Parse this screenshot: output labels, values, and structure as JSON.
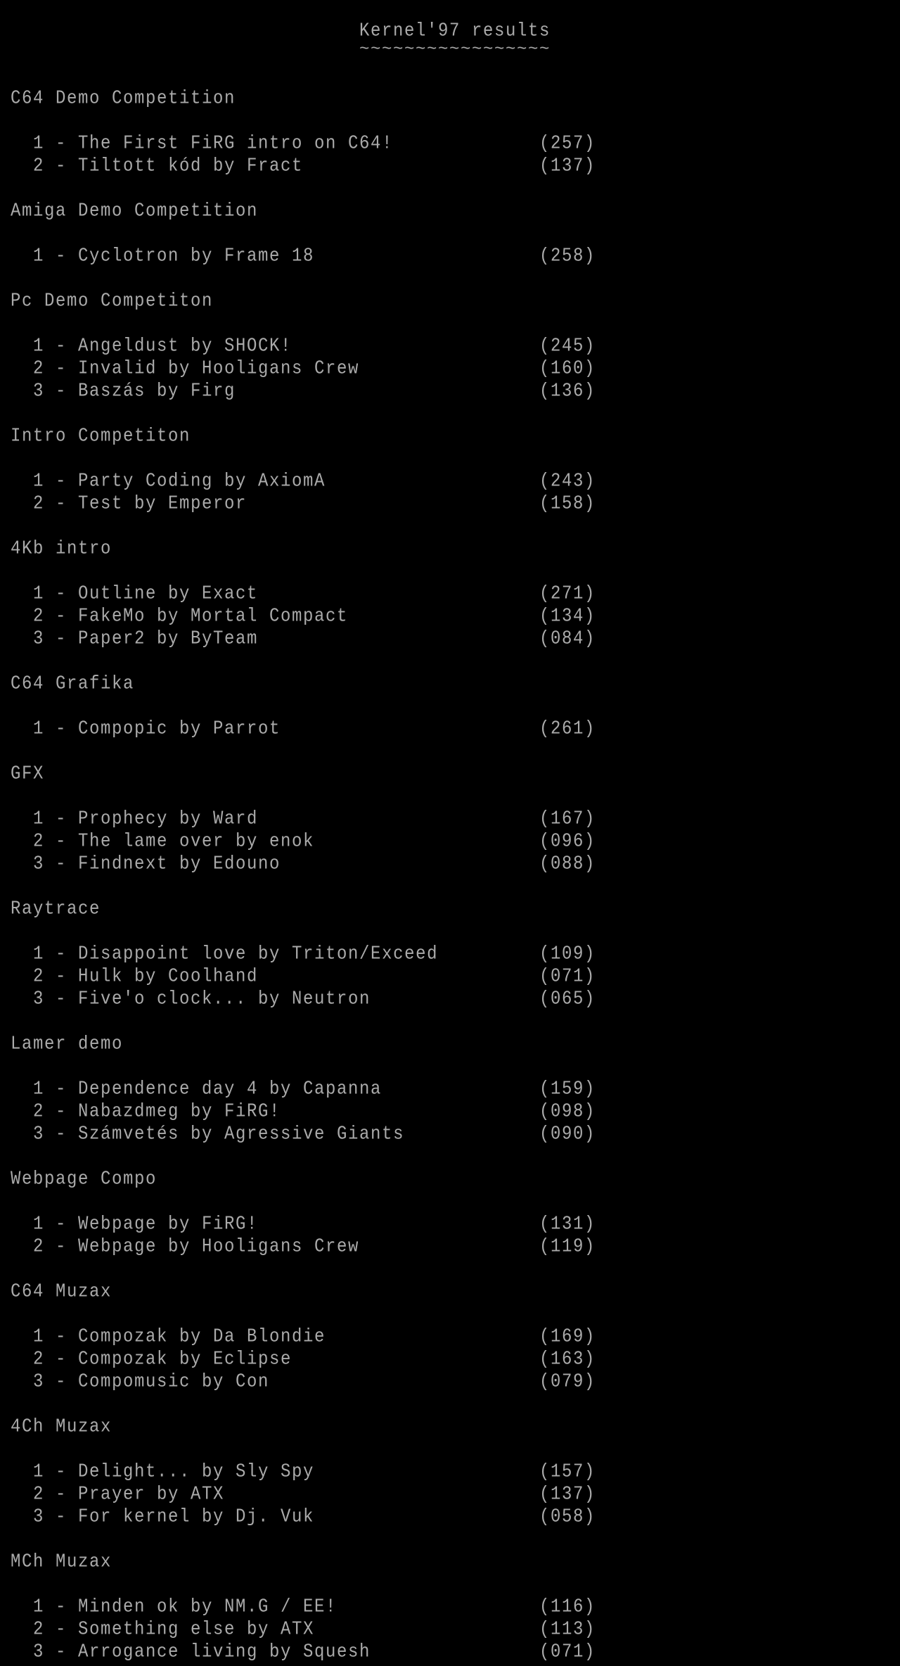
{
  "title": "Kernel'97 results",
  "title_underline": "~~~~~~~~~~~~~~~~~",
  "text_color": "#aaaaaa",
  "background_color": "#000000",
  "categories": [
    {
      "name": "C64 Demo Competition",
      "entries": [
        {
          "rank": "1",
          "entry": "The First FiRG intro on C64!",
          "score": "(257)"
        },
        {
          "rank": "2",
          "entry": "Tiltott kód by Fract",
          "score": "(137)"
        }
      ]
    },
    {
      "name": "Amiga Demo Competition",
      "entries": [
        {
          "rank": "1",
          "entry": "Cyclotron by Frame 18",
          "score": "(258)"
        }
      ]
    },
    {
      "name": "Pc Demo Competiton",
      "entries": [
        {
          "rank": "1",
          "entry": "Angeldust by SHOCK!",
          "score": "(245)"
        },
        {
          "rank": "2",
          "entry": "Invalid by Hooligans Crew",
          "score": "(160)"
        },
        {
          "rank": "3",
          "entry": "Baszás by Firg",
          "score": "(136)"
        }
      ]
    },
    {
      "name": "Intro Competiton",
      "entries": [
        {
          "rank": "1",
          "entry": "Party Coding by AxiomA",
          "score": "(243)"
        },
        {
          "rank": "2",
          "entry": "Test by Emperor",
          "score": "(158)"
        }
      ]
    },
    {
      "name": "4Kb intro",
      "entries": [
        {
          "rank": "1",
          "entry": "Outline by Exact",
          "score": "(271)"
        },
        {
          "rank": "2",
          "entry": "FakeMo by Mortal Compact",
          "score": "(134)"
        },
        {
          "rank": "3",
          "entry": "Paper2 by ByTeam",
          "score": "(084)"
        }
      ]
    },
    {
      "name": "C64 Grafika",
      "entries": [
        {
          "rank": "1",
          "entry": "Compopic by Parrot",
          "score": "(261)"
        }
      ]
    },
    {
      "name": "GFX",
      "entries": [
        {
          "rank": "1",
          "entry": "Prophecy by Ward",
          "score": "(167)"
        },
        {
          "rank": "2",
          "entry": "The lame over by enok",
          "score": "(096)"
        },
        {
          "rank": "3",
          "entry": "Findnext by Edouno",
          "score": "(088)"
        }
      ]
    },
    {
      "name": "Raytrace",
      "entries": [
        {
          "rank": "1",
          "entry": "Disappoint love by Triton/Exceed",
          "score": "(109)"
        },
        {
          "rank": "2",
          "entry": "Hulk by Coolhand",
          "score": "(071)"
        },
        {
          "rank": "3",
          "entry": "Five'o clock... by Neutron",
          "score": "(065)"
        }
      ]
    },
    {
      "name": "Lamer demo",
      "entries": [
        {
          "rank": "1",
          "entry": "Dependence day 4 by Capanna",
          "score": "(159)"
        },
        {
          "rank": "2",
          "entry": "Nabazdmeg by FiRG!",
          "score": "(098)"
        },
        {
          "rank": "3",
          "entry": "Számvetés by Agressive Giants",
          "score": "(090)"
        }
      ]
    },
    {
      "name": "Webpage Compo",
      "entries": [
        {
          "rank": "1",
          "entry": "Webpage by FiRG!",
          "score": "(131)"
        },
        {
          "rank": "2",
          "entry": "Webpage by Hooligans Crew",
          "score": "(119)"
        }
      ]
    },
    {
      "name": "C64 Muzax",
      "entries": [
        {
          "rank": "1",
          "entry": "Compozak by Da Blondie",
          "score": "(169)"
        },
        {
          "rank": "2",
          "entry": "Compozak by Eclipse",
          "score": "(163)"
        },
        {
          "rank": "3",
          "entry": "Compomusic by Con",
          "score": "(079)"
        }
      ]
    },
    {
      "name": "4Ch Muzax",
      "entries": [
        {
          "rank": "1",
          "entry": "Delight... by Sly Spy",
          "score": "(157)"
        },
        {
          "rank": "2",
          "entry": "Prayer by ATX",
          "score": "(137)"
        },
        {
          "rank": "3",
          "entry": "For kernel by Dj. Vuk",
          "score": "(058)"
        }
      ]
    },
    {
      "name": "MCh Muzax",
      "entries": [
        {
          "rank": "1",
          "entry": "Minden ok by NM.G / EE!",
          "score": "(116)"
        },
        {
          "rank": "2",
          "entry": "Something else by ATX",
          "score": "(113)"
        },
        {
          "rank": "3",
          "entry": "Arrogance living by Squesh",
          "score": "(071)"
        }
      ]
    }
  ]
}
